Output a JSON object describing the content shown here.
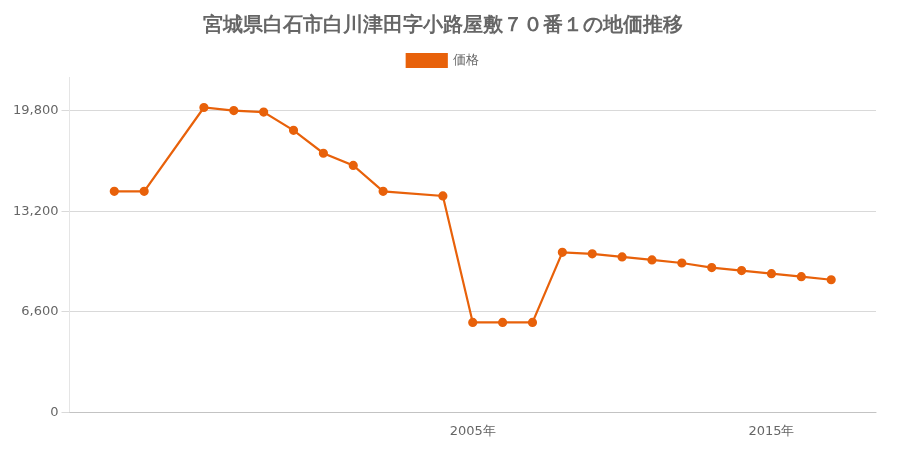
{
  "chart_data": {
    "type": "line",
    "title": "宮城県白石市白川津田字小路屋敷７０番１の地価推移",
    "x": [
      1993,
      1994,
      1996,
      1997,
      1998,
      1999,
      2000,
      2001,
      2002,
      2004,
      2005,
      2006,
      2007,
      2008,
      2009,
      2010,
      2011,
      2012,
      2013,
      2014,
      2015,
      2016,
      2017
    ],
    "series": [
      {
        "name": "価格",
        "color": "#e8610a",
        "marker": "circle",
        "values": [
          14500,
          14500,
          20000,
          19800,
          19700,
          18500,
          17000,
          16200,
          14500,
          14200,
          5900,
          5900,
          5900,
          10500,
          10400,
          10200,
          10000,
          9800,
          9500,
          9300,
          9100,
          8900,
          8700
        ]
      }
    ],
    "xlim": [
      1991.5,
      2018.5
    ],
    "xticks": [
      {
        "value": 2005,
        "label": "2005年"
      },
      {
        "value": 2015,
        "label": "2015年"
      }
    ],
    "ylim": [
      0,
      22000
    ],
    "yticks": [
      0,
      {
        "value": 6600,
        "label": "6,600"
      },
      {
        "value": 13200,
        "label": "13,200"
      },
      {
        "value": 19800,
        "label": "19,800"
      }
    ],
    "grid": "y",
    "legend": "top"
  }
}
